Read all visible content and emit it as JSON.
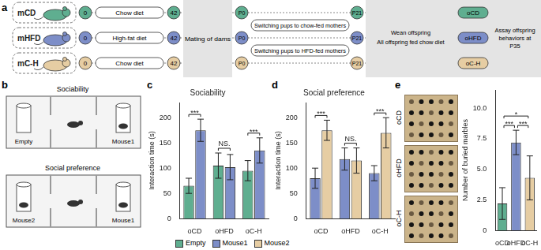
{
  "panel_labels": [
    "a",
    "b",
    "c",
    "d",
    "e"
  ],
  "schematic": {
    "groups": [
      {
        "label": "mCD",
        "color": "#5fae90",
        "start": 0,
        "diet": "Chow diet",
        "end": 42
      },
      {
        "label": "mHFD",
        "color": "#7d8ec8",
        "start": 0,
        "diet": "High-fat diet",
        "end": 42
      },
      {
        "label": "mC-H",
        "color": "#e6cda3",
        "start": 0,
        "diet": "Chow diet",
        "end": 42
      }
    ],
    "mating": "Mating of dams",
    "birth": "P0",
    "switches": [
      "Switching pups to chow-fed mothers",
      "Switching pups to HFD-fed mothers"
    ],
    "weaning": "P21",
    "wean_text": [
      "Wean offspring",
      "All offspring fed chow diet"
    ],
    "offspring": [
      {
        "label": "oCD",
        "color": "#5fae90"
      },
      {
        "label": "oHFD",
        "color": "#7d8ec8"
      },
      {
        "label": "oC-H",
        "color": "#e6cda3"
      }
    ],
    "assay": "Assay offspring behaviors at P35"
  },
  "arena": [
    {
      "title": "Sociability",
      "left": "Empty",
      "right": "Mouse1"
    },
    {
      "title": "Social preference",
      "left": "Mouse2",
      "right": "Mouse1"
    }
  ],
  "photos": [
    "oCD",
    "oHFD",
    "oC-H"
  ],
  "chart_data": [
    {
      "type": "bar",
      "title": "Sociability",
      "y_label": "Interaction time (s)",
      "categories": [
        "oCD",
        "oHFD",
        "oC-H"
      ],
      "series": [
        {
          "name": "Empty",
          "color": "#5fae90",
          "values": [
            65,
            105,
            95
          ],
          "errors": [
            15,
            25,
            20
          ]
        },
        {
          "name": "Mouse1",
          "color": "#7d8ec8",
          "values": [
            175,
            102,
            135
          ],
          "errors": [
            22,
            25,
            25
          ]
        }
      ],
      "ylim": [
        0,
        230
      ],
      "yticks": [
        0,
        50,
        100,
        150,
        200
      ],
      "grid": false,
      "legend": "bottom",
      "significance": [
        {
          "category": "oCD",
          "label": "***"
        },
        {
          "category": "oHFD",
          "label": "NS."
        },
        {
          "category": "oC-H",
          "label": "***"
        }
      ]
    },
    {
      "type": "bar",
      "title": "Social preference",
      "y_label": "Interaction time (s)",
      "categories": [
        "oCD",
        "oHFD",
        "oC-H"
      ],
      "series": [
        {
          "name": "Mouse1",
          "color": "#7d8ec8",
          "values": [
            80,
            118,
            90
          ],
          "errors": [
            20,
            22,
            15
          ]
        },
        {
          "name": "Mouse2",
          "color": "#e6cda3",
          "values": [
            175,
            115,
            170
          ],
          "errors": [
            20,
            25,
            30
          ]
        }
      ],
      "ylim": [
        0,
        230
      ],
      "yticks": [
        0,
        50,
        100,
        150,
        200
      ],
      "grid": false,
      "legend": "bottom",
      "significance": [
        {
          "category": "oCD",
          "label": "***"
        },
        {
          "category": "oHFD",
          "label": "NS."
        },
        {
          "category": "oC-H",
          "label": "***"
        }
      ]
    },
    {
      "type": "bar",
      "y_label": "Number of buried marbles",
      "categories": [
        "oCD",
        "oHFD",
        "oC-H"
      ],
      "values": [
        2.2,
        7.2,
        4.3
      ],
      "errors": [
        1.3,
        1.0,
        1.8
      ],
      "colors": [
        "#5fae90",
        "#7d8ec8",
        "#e6cda3"
      ],
      "ylim": [
        0,
        11.5
      ],
      "yticks": [
        0,
        2.5,
        {
          "value": 5,
          "label": "5.0"
        },
        7.5,
        {
          "value": 10,
          "label": "10.0"
        }
      ],
      "grid": false,
      "significance": [
        {
          "from": "oCD",
          "to": "oHFD",
          "label": "***"
        },
        {
          "from": "oHFD",
          "to": "oC-H",
          "label": "***"
        },
        {
          "from": "oCD",
          "to": "oC-H",
          "label": "*"
        }
      ]
    }
  ]
}
